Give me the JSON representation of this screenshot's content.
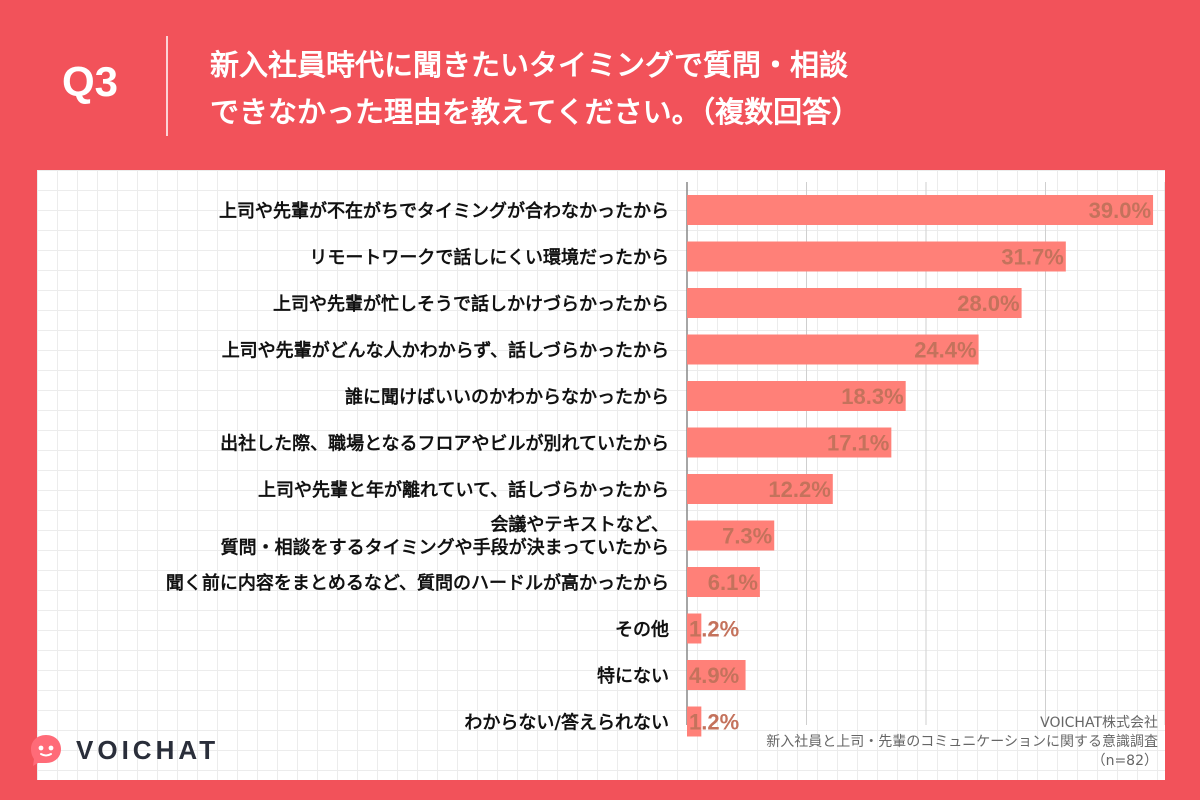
{
  "header": {
    "q_label": "Q3",
    "title_line1": "新入社員時代に聞きたいタイミングで質問・相談",
    "title_line2": "できなかった理由を教えてください。（複数回答）"
  },
  "colors": {
    "background": "#f2525a",
    "bar": "#ff8078",
    "value_text": "#c4725c"
  },
  "chart_data": {
    "type": "bar",
    "orientation": "horizontal",
    "title": "新入社員時代に聞きたいタイミングで質問・相談できなかった理由を教えてください。（複数回答）",
    "categories": [
      [
        "上司や先輩が不在がちでタイミングが合わなかったから"
      ],
      [
        "リモートワークで話しにくい環境だったから"
      ],
      [
        "上司や先輩が忙しそうで話しかけづらかったから"
      ],
      [
        "上司や先輩がどんな人かわからず、話しづらかったから"
      ],
      [
        "誰に聞けばいいのかわからなかったから"
      ],
      [
        "出社した際、職場となるフロアやビルが別れていたから"
      ],
      [
        "上司や先輩と年が離れていて、話しづらかったから"
      ],
      [
        "会議やテキストなど、",
        "質問・相談をするタイミングや手段が決まっていたから"
      ],
      [
        "聞く前に内容をまとめるなど、質問のハードルが高かったから"
      ],
      [
        "その他"
      ],
      [
        "特にない"
      ],
      [
        "わからない/答えられない"
      ]
    ],
    "values": [
      39.0,
      31.7,
      28.0,
      24.4,
      18.3,
      17.1,
      12.2,
      7.3,
      6.1,
      1.2,
      4.9,
      1.2
    ],
    "value_labels": [
      "39.0%",
      "31.7%",
      "28.0%",
      "24.4%",
      "18.3%",
      "17.1%",
      "12.2%",
      "7.3%",
      "6.1%",
      "1.2%",
      "4.9%",
      "1.2%"
    ],
    "xlim": [
      0,
      40
    ],
    "unit": "%"
  },
  "logo": {
    "name": "VOICHAT"
  },
  "source": {
    "company": "VOICHAT株式会社",
    "survey": "新入社員と上司・先輩のコミュニケーションに関する意識調査",
    "sample": "（n=82）"
  }
}
